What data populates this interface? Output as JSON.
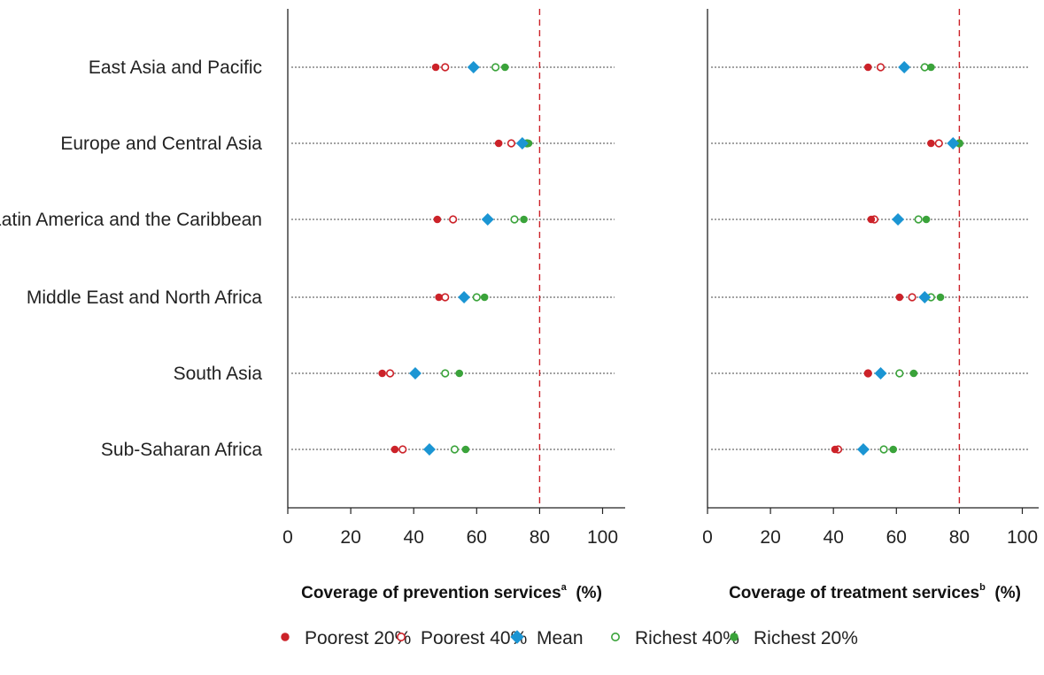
{
  "chart_data": {
    "type": "scatter",
    "categories": [
      "East Asia and Pacific",
      "Europe and Central Asia",
      "Latin America and the Caribbean",
      "Middle East and North Africa",
      "South Asia",
      "Sub-Saharan Africa"
    ],
    "xticks": [
      0,
      20,
      40,
      60,
      80,
      100
    ],
    "xlim": [
      0,
      107
    ],
    "reference_line": 80,
    "colors": {
      "poorest": "#cc2229",
      "mean": "#1b95d3",
      "richest": "#3aa33a",
      "reference": "#cc2229"
    },
    "legend": {
      "position": "bottom",
      "items": [
        {
          "key": "poorest20",
          "label": "Poorest 20%"
        },
        {
          "key": "poorest40",
          "label": "Poorest 40%"
        },
        {
          "key": "mean",
          "label": "Mean"
        },
        {
          "key": "richest40",
          "label": "Richest 40%"
        },
        {
          "key": "richest20",
          "label": "Richest 20%"
        }
      ]
    },
    "panels": [
      {
        "xlabel_main": "Coverage of prevention services",
        "xlabel_sup": "a",
        "xlabel_unit": " (%)",
        "series": [
          {
            "name": "Poorest 20%",
            "key": "poorest20",
            "values": [
              47,
              67,
              47.5,
              48,
              30,
              34
            ]
          },
          {
            "name": "Poorest 40%",
            "key": "poorest40",
            "values": [
              50,
              71,
              52.5,
              50,
              32.5,
              36.5
            ]
          },
          {
            "name": "Mean",
            "key": "mean",
            "values": [
              59,
              74.5,
              63.5,
              56,
              40.5,
              45
            ]
          },
          {
            "name": "Richest 40%",
            "key": "richest40",
            "values": [
              66,
              76,
              72,
              60,
              50,
              53
            ]
          },
          {
            "name": "Richest 20%",
            "key": "richest20",
            "values": [
              69,
              76.5,
              75,
              62.5,
              54.5,
              56.5
            ]
          }
        ]
      },
      {
        "xlabel_main": "Coverage of treatment services",
        "xlabel_sup": "b",
        "xlabel_unit": " (%)",
        "series": [
          {
            "name": "Poorest 20%",
            "key": "poorest20",
            "values": [
              51,
              71,
              52,
              61,
              51,
              40.5
            ]
          },
          {
            "name": "Poorest 40%",
            "key": "poorest40",
            "values": [
              55,
              73.5,
              53,
              65,
              51,
              41.5
            ]
          },
          {
            "name": "Mean",
            "key": "mean",
            "values": [
              62.5,
              78,
              60.5,
              69,
              55,
              49.5
            ]
          },
          {
            "name": "Richest 40%",
            "key": "richest40",
            "values": [
              69,
              80,
              67,
              71,
              61,
              56
            ]
          },
          {
            "name": "Richest 20%",
            "key": "richest20",
            "values": [
              71,
              80,
              69.5,
              74,
              65.5,
              59
            ]
          }
        ]
      }
    ]
  }
}
